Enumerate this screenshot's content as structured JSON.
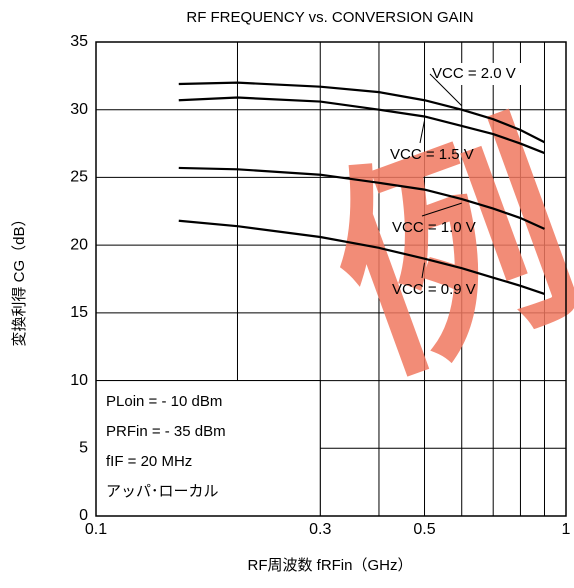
{
  "chart_data": {
    "type": "line",
    "title": "RF FREQUENCY vs. CONVERSION GAIN",
    "x_label": "RF周波数 fRFin（GHz）",
    "y_label": "変換利得 CG（dB）",
    "log_x": true,
    "grid": true,
    "x": [
      0.15,
      0.2,
      0.3,
      0.4,
      0.5,
      0.6,
      0.7,
      0.8,
      0.9
    ],
    "series": [
      {
        "name": "VCC = 2.0 V",
        "color": "#000000",
        "values": [
          31.9,
          32.0,
          31.7,
          31.3,
          30.7,
          30.0,
          29.3,
          28.5,
          27.6
        ]
      },
      {
        "name": "VCC = 1.5 V",
        "color": "#000000",
        "values": [
          30.7,
          30.9,
          30.6,
          30.0,
          29.5,
          28.8,
          28.2,
          27.5,
          26.8
        ]
      },
      {
        "name": "VCC = 1.0 V",
        "color": "#000000",
        "values": [
          25.7,
          25.6,
          25.2,
          24.6,
          24.1,
          23.4,
          22.7,
          22.0,
          21.2
        ]
      },
      {
        "name": "VCC = 0.9 V",
        "color": "#000000",
        "values": [
          21.8,
          21.4,
          20.6,
          19.8,
          19.0,
          18.3,
          17.6,
          17.0,
          16.4
        ]
      }
    ],
    "xlim": [
      0.1,
      1
    ],
    "xticks": [
      0.1,
      0.3,
      0.5,
      1
    ],
    "xminor": [
      0.2,
      0.4,
      0.6,
      0.7,
      0.8,
      0.9
    ],
    "ylim": [
      0,
      35
    ],
    "yticks": [
      0,
      5,
      10,
      15,
      20,
      25,
      30,
      35
    ],
    "annotations": [
      "PLoin =  - 10 dBm",
      "PRFin =  - 35 dBm",
      "fIF = 20 MHz",
      "アッパ･ローカル"
    ],
    "watermark": "例"
  }
}
